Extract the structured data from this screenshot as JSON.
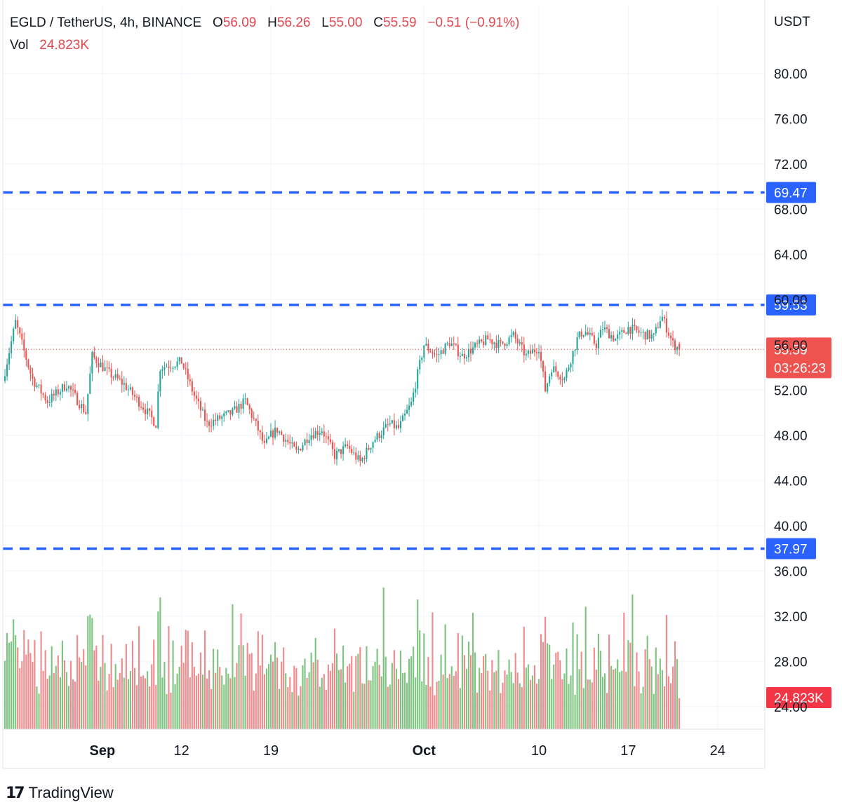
{
  "header": {
    "symbol": "EGLD / TetherUS, 4h, BINANCE",
    "o_label": "O",
    "o_value": "56.09",
    "h_label": "H",
    "h_value": "56.26",
    "l_label": "L",
    "l_value": "55.00",
    "c_label": "C",
    "c_value": "55.59",
    "change": "−0.51 (−0.91%)",
    "vol_label": "Vol",
    "vol_value": "24.823K"
  },
  "colors": {
    "up": "#26a69a",
    "down": "#ef5350",
    "vol_up": "#7cc47f",
    "vol_down": "#f08a8d",
    "level_line": "#2962ff",
    "grid": "#f0f3fa",
    "axis_text": "#131722"
  },
  "footer": {
    "brand": "TradingView",
    "logo_glyph": "17"
  },
  "chart_data": {
    "type": "candlestick",
    "interval": "4h",
    "currency": "USDT",
    "ylim": [
      22,
      86
    ],
    "y_ticks": [
      "80.00",
      "76.00",
      "72.00",
      "68.00",
      "64.00",
      "60.00",
      "56.00",
      "52.00",
      "48.00",
      "44.00",
      "40.00",
      "36.00",
      "32.00",
      "28.00",
      "24.00"
    ],
    "x_ticks": [
      {
        "label": "Sep",
        "bold": true,
        "day": 5.8
      },
      {
        "label": "12",
        "bold": false,
        "day": 12
      },
      {
        "label": "19",
        "bold": false,
        "day": 19
      },
      {
        "label": "Oct",
        "bold": true,
        "day": 31
      },
      {
        "label": "10",
        "bold": false,
        "day": 40
      },
      {
        "label": "17",
        "bold": false,
        "day": 47
      },
      {
        "label": "24",
        "bold": false,
        "day": 54
      }
    ],
    "x_range_days": [
      -2,
      57.7
    ],
    "horizontal_levels": [
      {
        "price": 69.47,
        "label": "69.47"
      },
      {
        "price": 59.53,
        "label": "59.53"
      },
      {
        "price": 37.97,
        "label": "37.97"
      }
    ],
    "last_price": {
      "price": 55.59,
      "label": "55.59",
      "countdown": "03:26:23"
    },
    "volume_label": {
      "label": "24.823K"
    },
    "volume_max": 37.97,
    "volume_base": 23.4,
    "path_days": [
      -2,
      -1,
      0.3,
      1.5,
      3,
      4.5,
      5,
      6.3,
      7.5,
      9,
      10,
      10.3,
      12,
      13,
      14,
      15,
      16,
      17,
      18,
      18.5,
      19,
      19.5,
      21,
      22,
      23,
      24,
      25,
      26,
      27,
      28.3,
      29,
      30,
      31,
      32,
      33,
      34,
      35,
      36,
      37,
      38,
      39,
      40,
      40.5,
      41,
      42,
      43,
      43.3,
      43.6,
      44.5,
      45,
      46,
      47,
      48,
      49,
      49.6,
      50,
      50.5,
      51
    ],
    "path_close": [
      52.8,
      58,
      53,
      51,
      52.5,
      50,
      55,
      53.5,
      52.5,
      50.5,
      49,
      54,
      54.5,
      51.5,
      49,
      49.5,
      50,
      51,
      48.5,
      47,
      48,
      48.5,
      46.5,
      48,
      48.5,
      46.2,
      47,
      45.6,
      47.5,
      49,
      48.6,
      50.8,
      56,
      55,
      56.2,
      55,
      55.8,
      56.5,
      56,
      56.8,
      55,
      55.8,
      52,
      54,
      53,
      56.5,
      57,
      57.2,
      56,
      57.5,
      56.5,
      57.5,
      57,
      56.7,
      58.6,
      57.5,
      56.1,
      55.59
    ]
  }
}
